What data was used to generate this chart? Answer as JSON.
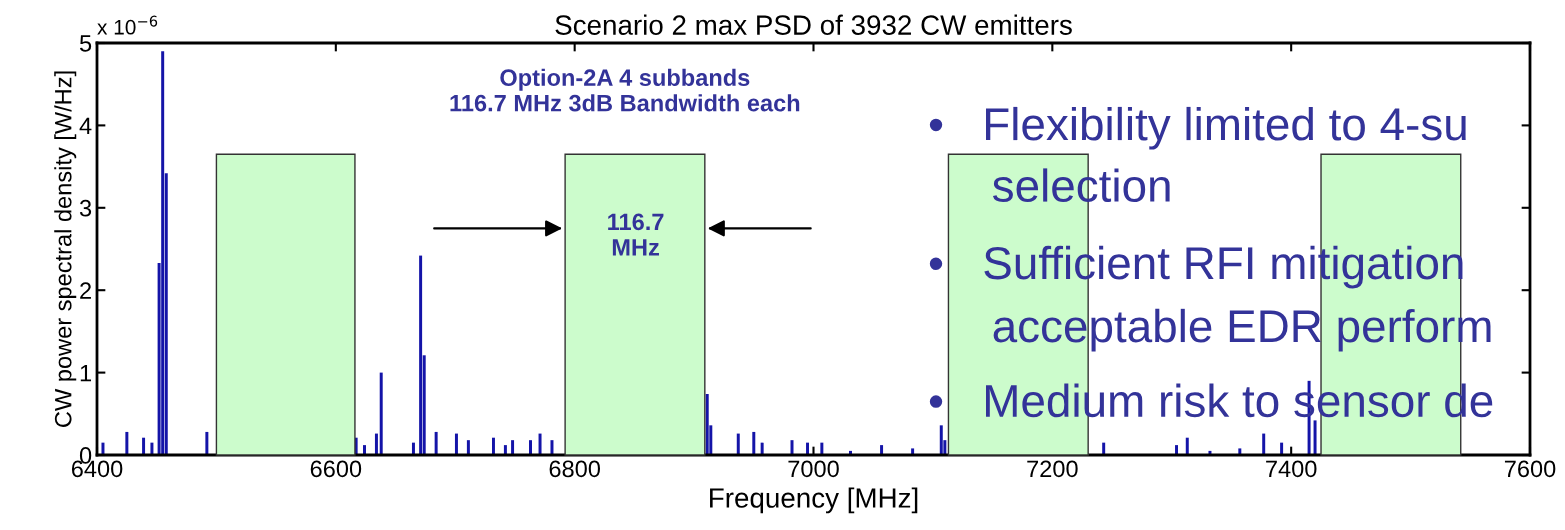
{
  "chart_data": {
    "type": "bar",
    "title": "Scenario 2 max PSD of 3932 CW emitters",
    "xlabel": "Frequency [MHz]",
    "ylabel": "CW power spectral density [W/Hz]",
    "x": [
      6405,
      6425,
      6439,
      6446,
      6452,
      6455,
      6458,
      6492,
      6617,
      6624,
      6634,
      6638,
      6665,
      6671,
      6674,
      6684,
      6701,
      6711,
      6732,
      6742,
      6748,
      6763,
      6771,
      6781,
      6911,
      6914,
      6937,
      6950,
      6957,
      6982,
      6995,
      7007,
      7031,
      7057,
      7083,
      7107,
      7110,
      7243,
      7304,
      7313,
      7332,
      7357,
      7377,
      7392,
      7415,
      7420
    ],
    "values": [
      0.15,
      0.28,
      0.21,
      0.15,
      2.33,
      4.9,
      3.42,
      0.28,
      0.21,
      0.12,
      0.26,
      1.0,
      0.15,
      2.42,
      1.21,
      0.28,
      0.26,
      0.18,
      0.21,
      0.12,
      0.18,
      0.18,
      0.26,
      0.18,
      0.74,
      0.36,
      0.26,
      0.28,
      0.15,
      0.18,
      0.15,
      0.15,
      0.05,
      0.12,
      0.08,
      0.36,
      0.18,
      0.15,
      0.12,
      0.21,
      0.05,
      0.08,
      0.26,
      0.15,
      0.9,
      0.42
    ],
    "color": "#1414a8",
    "xlim": [
      6400,
      7600
    ],
    "xticks": [
      6400,
      6600,
      6800,
      7000,
      7200,
      7400,
      7600
    ],
    "ylim": [
      0,
      5
    ],
    "yticks": [
      0,
      1,
      2,
      3,
      4,
      5
    ],
    "bands": [
      {
        "axis": "x",
        "from": 6500,
        "to": 6616,
        "color": "#ccfccc"
      },
      {
        "axis": "x",
        "from": 6792,
        "to": 6909,
        "color": "#ccfccc"
      },
      {
        "axis": "x",
        "from": 7113,
        "to": 7230,
        "color": "#ccfccc"
      },
      {
        "axis": "x",
        "from": 7425,
        "to": 7542,
        "color": "#ccfccc"
      }
    ],
    "annotations": [
      "x 10$^{−6}$",
      "Option-2A 4 subbands\n116.7 MHz 3dB Bandwidth each",
      "116.7\nMHz",
      "•   Flexibility limited to 4-su",
      "     selection",
      "•   Sufficient RFI mitigation",
      "     acceptable EDR perform",
      "•   Medium risk to sensor de"
    ],
    "grid": false
  }
}
